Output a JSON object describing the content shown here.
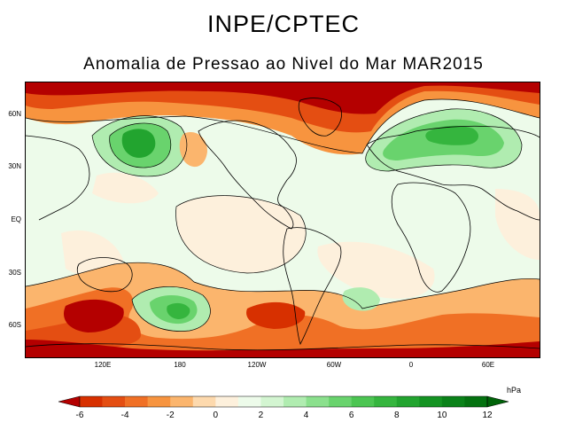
{
  "header": {
    "title": "INPE/CPTEC",
    "subtitle": "Anomalia de Pressao ao Nivel do Mar MAR2015"
  },
  "map": {
    "lat_labels": [
      "60N",
      "30N",
      "EQ",
      "30S",
      "60S"
    ],
    "lon_labels": [
      "120E",
      "180",
      "120W",
      "60W",
      "0",
      "60E"
    ],
    "lon_values": [
      120,
      180,
      240,
      300,
      360,
      420
    ],
    "lat_values": [
      60,
      30,
      0,
      -30,
      -60
    ],
    "lon_range": [
      60,
      460
    ],
    "lat_range": [
      -78,
      78
    ]
  },
  "colorbar": {
    "unit": "hPa",
    "tick_labels": [
      "-6",
      "-4",
      "-2",
      "0",
      "2",
      "4",
      "6",
      "8",
      "10",
      "12"
    ],
    "tick_values": [
      -6,
      -4,
      -2,
      0,
      2,
      4,
      6,
      8,
      10,
      12
    ],
    "levels": [
      -8,
      -6,
      -5,
      -4,
      -3,
      -2,
      -1,
      0,
      1,
      2,
      3,
      4,
      5,
      6,
      7,
      8,
      9,
      10,
      11,
      12,
      14
    ],
    "colors": [
      "#b40000",
      "#d73000",
      "#e44e12",
      "#f07025",
      "#f7943f",
      "#fbb56d",
      "#fdd9ad",
      "#fdf0dc",
      "#edfbea",
      "#d3f5d1",
      "#b0ecb0",
      "#8be08d",
      "#69d36d",
      "#4cc552",
      "#35b53e",
      "#22a42f",
      "#149322",
      "#0a8219",
      "#047210",
      "#006309"
    ]
  }
}
